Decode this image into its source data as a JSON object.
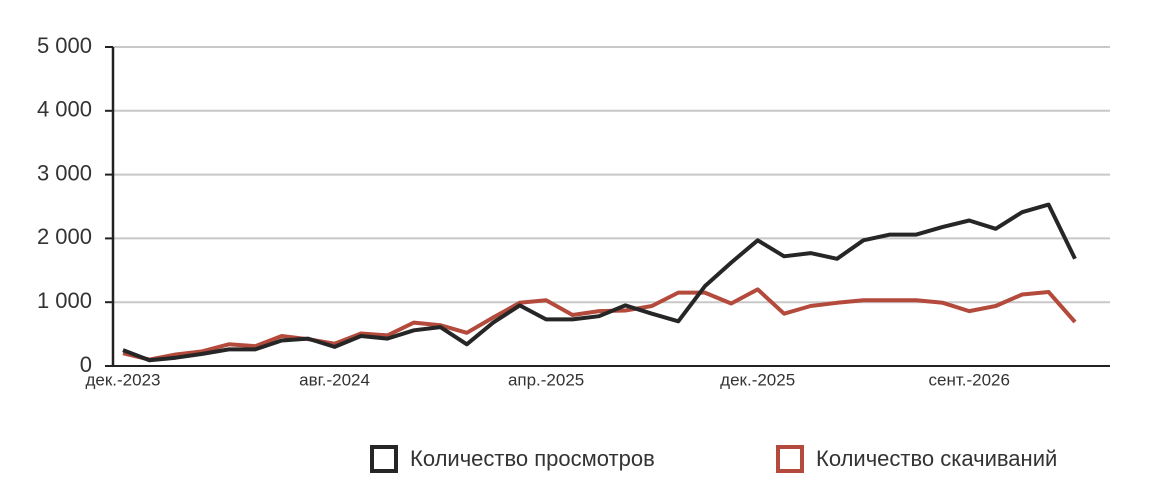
{
  "chart_data": {
    "type": "line",
    "categories": [
      "дек.-2023",
      null,
      null,
      null,
      null,
      null,
      null,
      null,
      "авг.-2024",
      null,
      null,
      null,
      null,
      null,
      null,
      null,
      "апр.-2025",
      null,
      null,
      null,
      null,
      null,
      null,
      null,
      "дек.-2025",
      null,
      null,
      null,
      null,
      null,
      null,
      null,
      "сент.-2026",
      null,
      null,
      null,
      null
    ],
    "series": [
      {
        "name": "Количество просмотров",
        "color": "#262626",
        "values": [
          250,
          90,
          130,
          190,
          260,
          260,
          400,
          430,
          300,
          470,
          430,
          560,
          610,
          340,
          680,
          950,
          730,
          730,
          780,
          950,
          820,
          700,
          1250,
          1620,
          1970,
          1720,
          1770,
          1680,
          1970,
          2060,
          2060,
          2180,
          2280,
          2150,
          2410,
          2530,
          1680
        ]
      },
      {
        "name": "Количество скачиваний",
        "color": "#b34a3c",
        "values": [
          200,
          100,
          180,
          230,
          340,
          310,
          470,
          420,
          350,
          510,
          480,
          680,
          640,
          520,
          760,
          990,
          1030,
          800,
          860,
          870,
          940,
          1150,
          1150,
          980,
          1200,
          820,
          940,
          990,
          1030,
          1030,
          1030,
          990,
          860,
          940,
          1120,
          1160,
          690
        ]
      }
    ],
    "ylim": [
      0,
      5000
    ],
    "yticks": [
      0,
      {
        "value": 1000,
        "label": "1 000"
      },
      {
        "value": 2000,
        "label": "2 000"
      },
      {
        "value": 3000,
        "label": "3 000"
      },
      {
        "value": 4000,
        "label": "4 000"
      },
      {
        "value": 5000,
        "label": "5 000"
      }
    ],
    "grid": true
  }
}
